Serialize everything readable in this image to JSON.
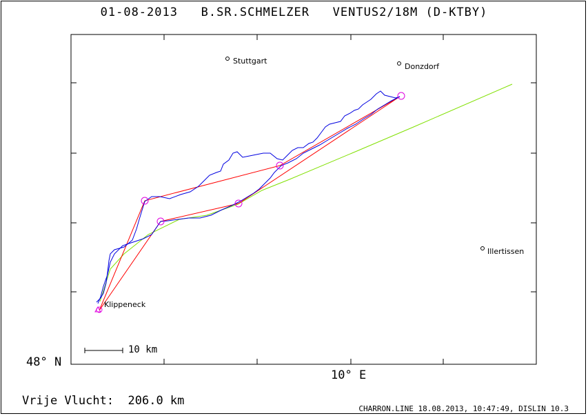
{
  "title": "01-08-2013   B.SR.SCHMELZER   VENTUS2/18M (D-KTBY)",
  "axes": {
    "lat_label": "48° N",
    "lon_label": "10° E"
  },
  "cities": [
    {
      "name": "Stuttgart"
    },
    {
      "name": "Donzdorf"
    },
    {
      "name": "Illertissen"
    },
    {
      "name": "Klippeneck"
    }
  ],
  "scale_bar": {
    "label": "10 km"
  },
  "footer": {
    "distance_label": "Vrije Vlucht:  206.0 km",
    "credits": "CHARRON.LINE 18.08.2013, 10:47:49, DISLIN 10.3"
  },
  "colors": {
    "track": "#0000e0",
    "task_line": "#ff0000",
    "wind_line": "#80e000",
    "turnpoint": "#e000e0",
    "frame": "#000000"
  }
}
